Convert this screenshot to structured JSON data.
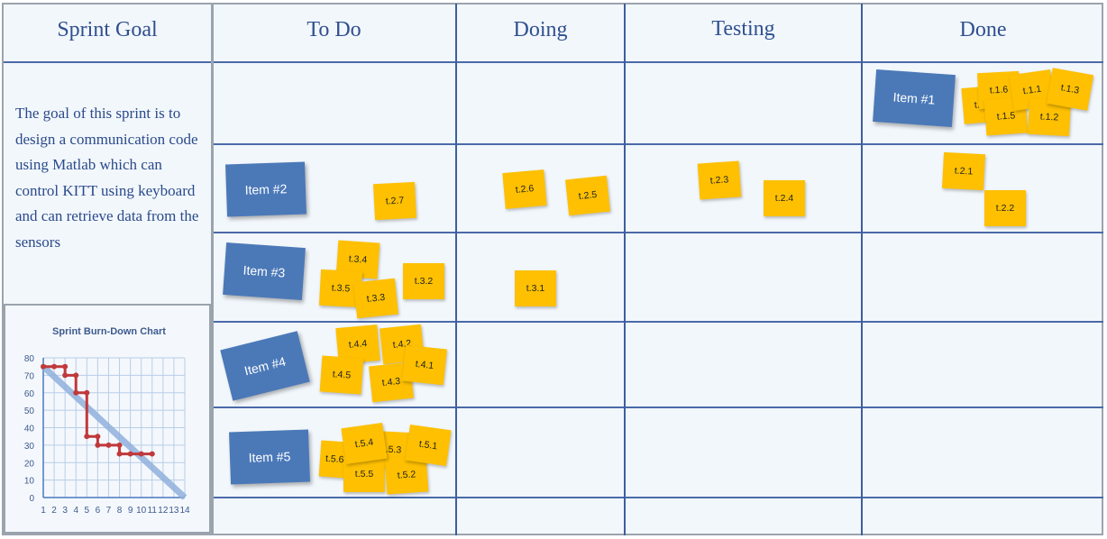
{
  "headers": {
    "goal": "Sprint Goal",
    "todo": "To Do",
    "doing": "Doing",
    "testing": "Testing",
    "done": "Done"
  },
  "goal_text": "The goal of this sprint is to design a communication code using Matlab which can control KITT using keyboard  and can retrieve data from the sensors",
  "items": [
    "Item #1",
    "Item #2",
    "Item #3",
    "Item #4",
    "Item #5"
  ],
  "tasks": {
    "r1": [
      "t.1.4",
      "t.1.6",
      "t.1.1",
      "t.1.3",
      "t.1.5",
      "t.1.2"
    ],
    "r2": [
      "t.2.7",
      "t.2.6",
      "t.2.5",
      "t.2.3",
      "t.2.4",
      "t.2.1",
      "t.2.2"
    ],
    "r3": [
      "t.3.4",
      "t.3.5",
      "t.3.3",
      "t.3.2",
      "t.3.1"
    ],
    "r4": [
      "t.4.4",
      "t.4.2",
      "t.4.5",
      "t.4.1",
      "t.4.3"
    ],
    "r5": [
      "t.5.3",
      "t.5.6",
      "t.5.4",
      "t.5.1",
      "t.5.5",
      "t.5.2"
    ]
  },
  "colors": {
    "item": "#4b79b8",
    "task": "#fec000",
    "actual": "#c0393b",
    "ideal": "#8fb0dc"
  },
  "chart_data": {
    "type": "line",
    "title": "Sprint Burn-Down Chart",
    "xlim": [
      1,
      14
    ],
    "ylim": [
      0,
      80
    ],
    "x_ticks": [
      "1",
      "2",
      "3",
      "4",
      "5",
      "6",
      "7",
      "8",
      "9",
      "10",
      "11",
      "12",
      "13",
      "14"
    ],
    "y_ticks": [
      "0",
      "10",
      "20",
      "30",
      "40",
      "50",
      "60",
      "70",
      "80"
    ],
    "grid": true,
    "series": [
      {
        "style": "ideal",
        "points": [
          [
            1,
            75
          ],
          [
            14,
            0
          ]
        ]
      },
      {
        "style": "actual",
        "points": [
          [
            1,
            75
          ],
          [
            2,
            75
          ],
          [
            3,
            75
          ],
          [
            3,
            70
          ],
          [
            4,
            70
          ],
          [
            4,
            60
          ],
          [
            5,
            60
          ],
          [
            5,
            35
          ],
          [
            6,
            35
          ],
          [
            6,
            30
          ],
          [
            7,
            30
          ],
          [
            8,
            30
          ],
          [
            8,
            25
          ],
          [
            9,
            25
          ],
          [
            10,
            25
          ],
          [
            11,
            25
          ]
        ]
      }
    ]
  }
}
